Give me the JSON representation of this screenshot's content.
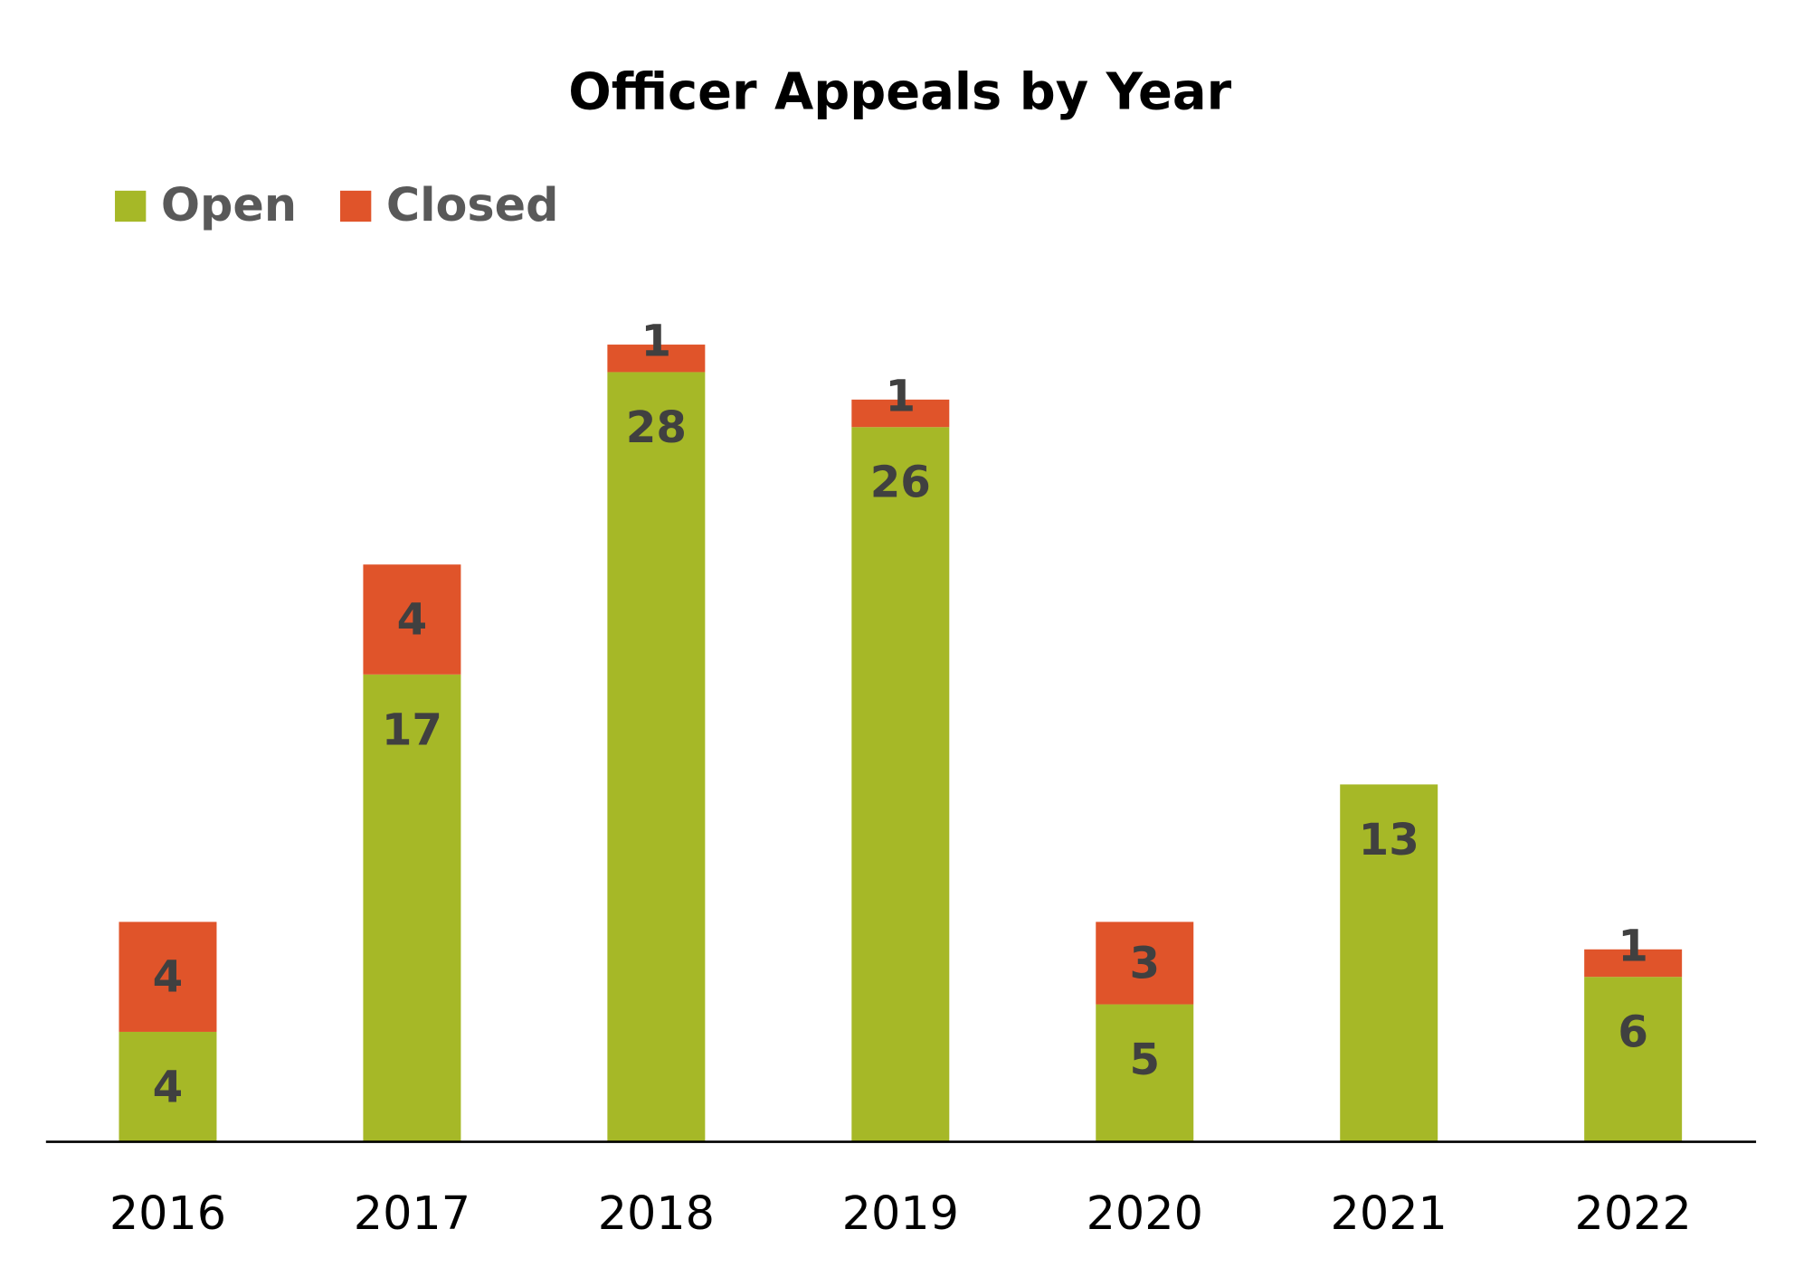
{
  "chart_data": {
    "type": "bar",
    "stacked": true,
    "title": "Officer Appeals by Year",
    "xlabel": "",
    "ylabel": "",
    "categories": [
      "2016",
      "2017",
      "2018",
      "2019",
      "2020",
      "2021",
      "2022"
    ],
    "series": [
      {
        "name": "Open",
        "color": "#A6B827",
        "values": [
          4,
          17,
          28,
          26,
          5,
          13,
          6
        ]
      },
      {
        "name": "Closed",
        "color": "#E0542A",
        "values": [
          4,
          4,
          1,
          1,
          3,
          0,
          1
        ]
      }
    ],
    "ylim": [
      0,
      29
    ],
    "grid": false,
    "legend": "top-left",
    "data_labels": true
  }
}
